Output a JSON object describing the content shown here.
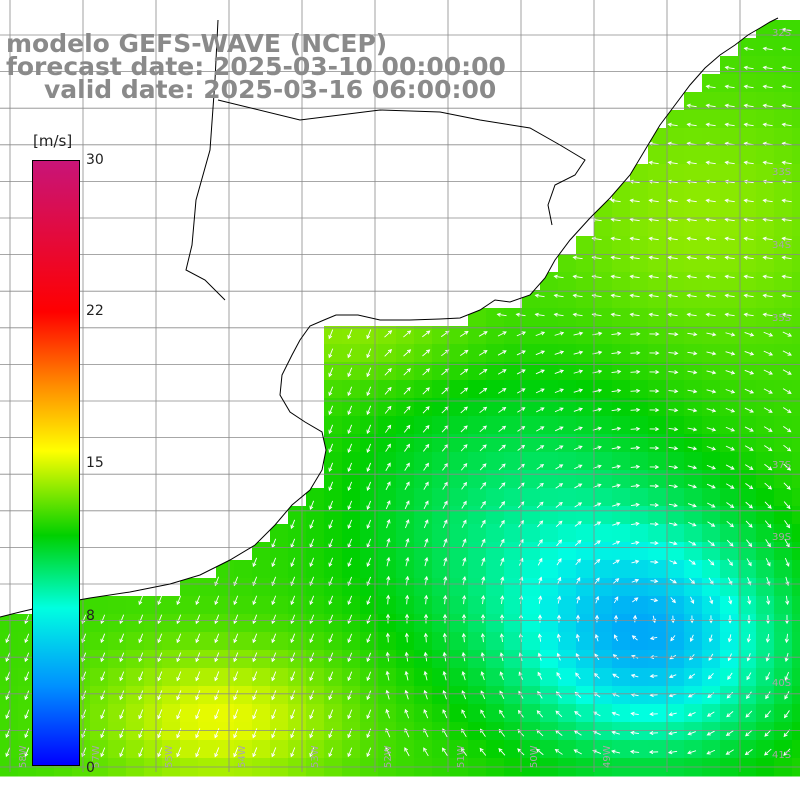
{
  "header": {
    "line1": "modelo GEFS-WAVE (NCEP)",
    "line2": "forecast date: 2025-03-10 00:00:00",
    "line3": "valid date: 2025-03-16 06:00:00"
  },
  "colorbar": {
    "unit": "[m/s]",
    "ticks": [
      "30",
      "22",
      "15",
      "8",
      "0"
    ],
    "range": [
      0,
      30
    ],
    "colors": [
      "#0000ff",
      "#0090ff",
      "#00ffe0",
      "#00d000",
      "#ffff00",
      "#ff8a00",
      "#ff0000",
      "#c81478"
    ]
  },
  "map": {
    "land_color": "#ffffff",
    "grid_color": "#8a8a8a",
    "coastline_color": "#000000",
    "arrow_color": "#ffffff",
    "lat_labels": [
      "32S",
      "33S",
      "34S",
      "35S",
      "37S",
      "39S",
      "40S",
      "41S"
    ],
    "lon_labels": [
      "58W",
      "57W",
      "55W",
      "54W",
      "53W",
      "52W",
      "51W",
      "50W",
      "49W"
    ]
  }
}
